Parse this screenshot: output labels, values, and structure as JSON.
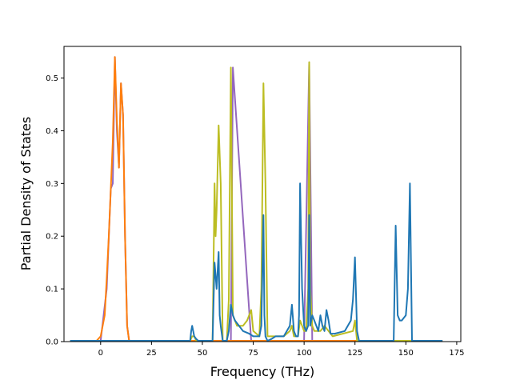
{
  "chart_data": {
    "type": "line",
    "title": "",
    "xlabel": "Frequency (THz)",
    "ylabel": "Partial Density of States",
    "xlim": [
      -18,
      177
    ],
    "ylim": [
      0,
      0.56
    ],
    "xticks": [
      0,
      25,
      50,
      75,
      100,
      125,
      150,
      175
    ],
    "xtick_labels": [
      "0",
      "25",
      "50",
      "75",
      "100",
      "125",
      "150",
      "175"
    ],
    "yticks": [
      0.0,
      0.1,
      0.2,
      0.3,
      0.4,
      0.5
    ],
    "ytick_labels": [
      "0.0",
      "0.1",
      "0.2",
      "0.3",
      "0.4",
      "0.5"
    ],
    "grid": false,
    "legend": false,
    "series": [
      {
        "color": "#9467bd",
        "x": [
          -15,
          0,
          3,
          5,
          6,
          7,
          8,
          9,
          10,
          11,
          12,
          13,
          14,
          44,
          45,
          56,
          58,
          64,
          65,
          74,
          80,
          82,
          94,
          98,
          100,
          102.5,
          104,
          108,
          110,
          112,
          125,
          126,
          145,
          150,
          152,
          153,
          168
        ],
        "values": [
          0,
          0,
          0.1,
          0.29,
          0.3,
          0.54,
          0.4,
          0.33,
          0.49,
          0.43,
          0.2,
          0.03,
          0,
          0,
          0,
          0,
          0,
          0,
          0.52,
          0,
          0,
          0,
          0,
          0,
          0,
          0.53,
          0,
          0,
          0,
          0,
          0,
          0,
          0,
          0,
          0,
          0,
          0
        ]
      },
      {
        "color": "#ff7f0e",
        "x": [
          -15,
          -2,
          0,
          2,
          3,
          4,
          5,
          6,
          7,
          8,
          9,
          10,
          11,
          12,
          13,
          14,
          168
        ],
        "values": [
          0,
          0,
          0.01,
          0.05,
          0.12,
          0.2,
          0.29,
          0.38,
          0.54,
          0.42,
          0.33,
          0.49,
          0.43,
          0.2,
          0.03,
          0,
          0
        ]
      },
      {
        "color": "#bcbd22",
        "x": [
          -15,
          44,
          45,
          46,
          47,
          55,
          56,
          56.5,
          57,
          58,
          59,
          60,
          62,
          63,
          64,
          65,
          66,
          67,
          70,
          72,
          74,
          75,
          78,
          79,
          80,
          81,
          82,
          86,
          90,
          93,
          94,
          95,
          97,
          98,
          99,
          100,
          101,
          102,
          102.5,
          103,
          104,
          105,
          108,
          110,
          112,
          114,
          124,
          125,
          126,
          127,
          168
        ],
        "values": [
          0,
          0,
          0.01,
          0.01,
          0,
          0,
          0.3,
          0.2,
          0.25,
          0.41,
          0.3,
          0,
          0,
          0.08,
          0.52,
          0.05,
          0.04,
          0.03,
          0.03,
          0.04,
          0.06,
          0.02,
          0.01,
          0.1,
          0.49,
          0.3,
          0.01,
          0.01,
          0.01,
          0.02,
          0.03,
          0.01,
          0.01,
          0.04,
          0.03,
          0.02,
          0.02,
          0.1,
          0.53,
          0.1,
          0.03,
          0.02,
          0.02,
          0.03,
          0.02,
          0.01,
          0.02,
          0.04,
          0,
          0,
          0
        ]
      },
      {
        "color": "#1f77b4",
        "x": [
          -15,
          44,
          44.5,
          45,
          46,
          47,
          48,
          55,
          56,
          57,
          58,
          58.5,
          59,
          60,
          62,
          63,
          64,
          65,
          66,
          70,
          73,
          75,
          78,
          79,
          80,
          80.5,
          81,
          82,
          84,
          86,
          90,
          93,
          94,
          95,
          96,
          97,
          97.5,
          98,
          99,
          100,
          101,
          102,
          102.5,
          103,
          104,
          105,
          107,
          108,
          109,
          110,
          111,
          112,
          113,
          115,
          120,
          123,
          124,
          125,
          126,
          127,
          130,
          144,
          145,
          146,
          147,
          148,
          150,
          151,
          152,
          153,
          168
        ],
        "values": [
          0,
          0,
          0.02,
          0.03,
          0.01,
          0.005,
          0,
          0,
          0.15,
          0.1,
          0.17,
          0.05,
          0.03,
          0,
          0,
          0.02,
          0.07,
          0.05,
          0.04,
          0.02,
          0.015,
          0.01,
          0.01,
          0.03,
          0.24,
          0.05,
          0.01,
          0,
          0.005,
          0.01,
          0.01,
          0.03,
          0.07,
          0.02,
          0.01,
          0.01,
          0.05,
          0.3,
          0.1,
          0.03,
          0.02,
          0.03,
          0.24,
          0.03,
          0.05,
          0.04,
          0.02,
          0.05,
          0.03,
          0.02,
          0.06,
          0.04,
          0.015,
          0.015,
          0.02,
          0.04,
          0.08,
          0.16,
          0.02,
          0,
          0,
          0,
          0.22,
          0.05,
          0.04,
          0.04,
          0.05,
          0.1,
          0.3,
          0,
          0
        ]
      }
    ]
  }
}
